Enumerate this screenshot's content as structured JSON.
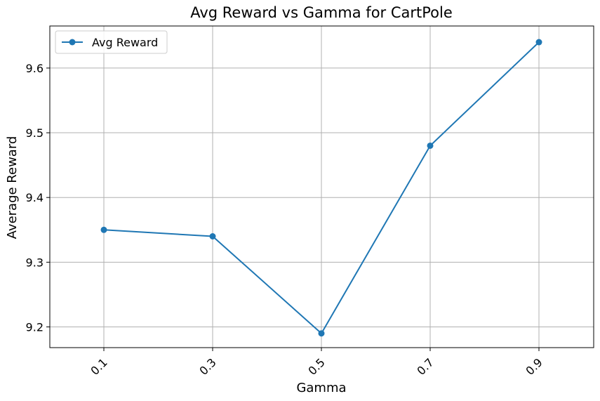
{
  "chart_data": {
    "type": "line",
    "title": "Avg Reward vs Gamma for CartPole",
    "xlabel": "Gamma",
    "ylabel": "Average Reward",
    "categories": [
      "0.1",
      "0.3",
      "0.5",
      "0.7",
      "0.9"
    ],
    "series": [
      {
        "name": "Avg Reward",
        "values": [
          9.35,
          9.34,
          9.19,
          9.48,
          9.64
        ],
        "color": "#1f77b4"
      }
    ],
    "ylim": [
      9.168,
      9.665
    ],
    "yticks": [
      "9.2",
      "9.3",
      "9.4",
      "9.5",
      "9.6"
    ],
    "grid": true,
    "legend_position": "top-left",
    "xtick_rotation": "45 degrees"
  }
}
